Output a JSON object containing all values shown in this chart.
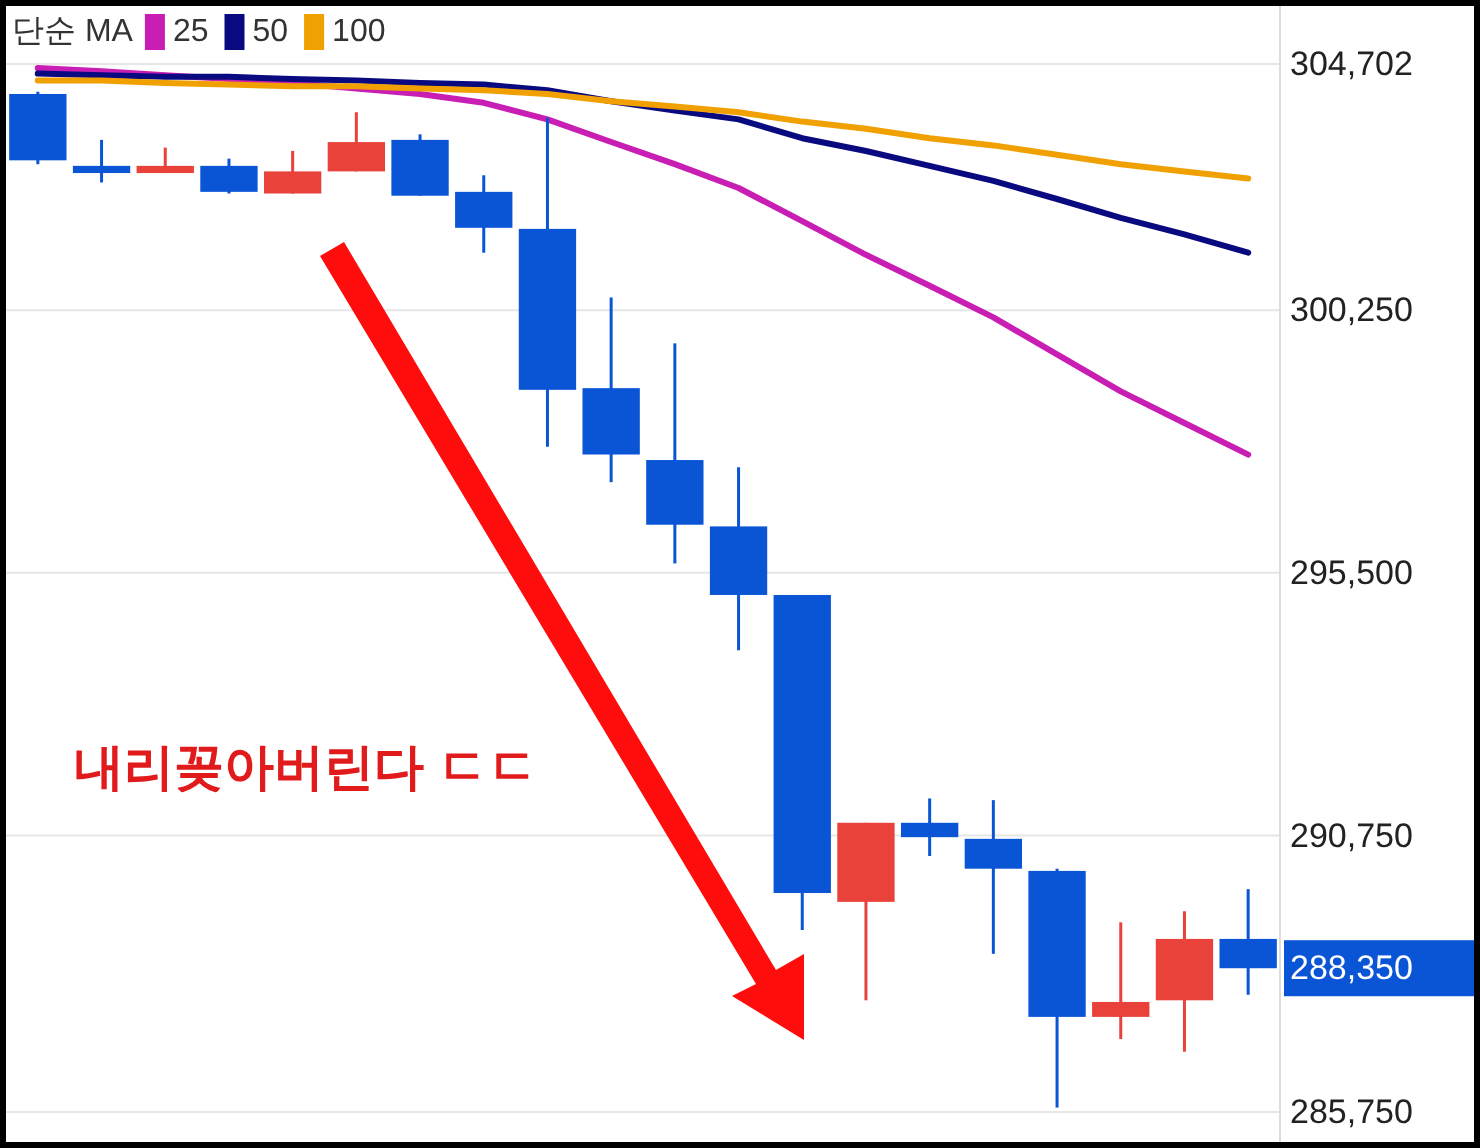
{
  "chart_data": {
    "type": "candlestick",
    "categories": [
      null,
      null,
      null,
      null,
      null,
      null,
      null,
      null,
      null,
      null,
      null,
      null,
      null,
      null,
      null,
      null,
      null,
      null,
      null,
      null
    ],
    "ohlc": [
      [
        304160,
        304200,
        302890,
        302960
      ],
      [
        302860,
        303330,
        302560,
        302730
      ],
      [
        302730,
        303190,
        302730,
        302860
      ],
      [
        302860,
        302990,
        302360,
        302390
      ],
      [
        302360,
        303130,
        302360,
        302760
      ],
      [
        302760,
        303830,
        302760,
        303290
      ],
      [
        303330,
        303430,
        302320,
        302320
      ],
      [
        302390,
        302690,
        301290,
        301740
      ],
      [
        301720,
        303730,
        297780,
        298810
      ],
      [
        298840,
        300480,
        297140,
        297640
      ],
      [
        297540,
        299650,
        295670,
        296370
      ],
      [
        296340,
        297410,
        294100,
        295100
      ],
      [
        295100,
        295100,
        289040,
        289710
      ],
      [
        289550,
        290980,
        287770,
        290980
      ],
      [
        290980,
        291420,
        290380,
        290720
      ],
      [
        290690,
        291390,
        288610,
        290150
      ],
      [
        290110,
        290150,
        285830,
        287470
      ],
      [
        287470,
        289180,
        287070,
        287740
      ],
      [
        287770,
        289380,
        286840,
        288880
      ],
      [
        288880,
        289780,
        287870,
        288350
      ]
    ],
    "colors": [
      "#0a55d6",
      "#0a55d6",
      "#e8423a",
      "#0a55d6",
      "#e8423a",
      "#e8423a",
      "#0a55d6",
      "#0a55d6",
      "#0a55d6",
      "#0a55d6",
      "#0a55d6",
      "#0a55d6",
      "#0a55d6",
      "#e8423a",
      "#0a55d6",
      "#0a55d6",
      "#0a55d6",
      "#e8423a",
      "#e8423a",
      "#0a55d6"
    ],
    "series": [
      {
        "type": "line",
        "name": "25",
        "color": "#c81eb4",
        "values": [
          304630,
          304570,
          304500,
          304430,
          304360,
          304260,
          304160,
          304000,
          303700,
          303290,
          302890,
          302460,
          301860,
          301250,
          300690,
          300120,
          299450,
          298780,
          298210,
          297640
        ]
      },
      {
        "type": "line",
        "name": "50",
        "color": "#0a0a80",
        "values": [
          304530,
          304500,
          304470,
          304470,
          304430,
          304400,
          304360,
          304330,
          304230,
          304030,
          303860,
          303700,
          303360,
          303130,
          302860,
          302590,
          302260,
          301920,
          301620,
          301290
        ]
      },
      {
        "type": "line",
        "name": "100",
        "color": "#f0a000",
        "values": [
          304400,
          304400,
          304360,
          304330,
          304300,
          304300,
          304260,
          304230,
          304160,
          304030,
          303930,
          303830,
          303660,
          303530,
          303360,
          303230,
          303060,
          302890,
          302760,
          302630
        ]
      }
    ],
    "legend_title": "단순 MA",
    "legend": "top left",
    "ylim": [
      285750,
      304702
    ],
    "yticks": [
      {
        "value": 304702,
        "label": "304,702"
      },
      {
        "value": 300250,
        "label": "300,250"
      },
      {
        "value": 295500,
        "label": "295,500"
      },
      {
        "value": 290750,
        "label": "290,750"
      },
      {
        "value": 285750,
        "label": "285,750"
      }
    ],
    "grid": "y",
    "annotations": [
      "내리꽂아버린다 ㄷㄷ",
      "288,350"
    ]
  }
}
